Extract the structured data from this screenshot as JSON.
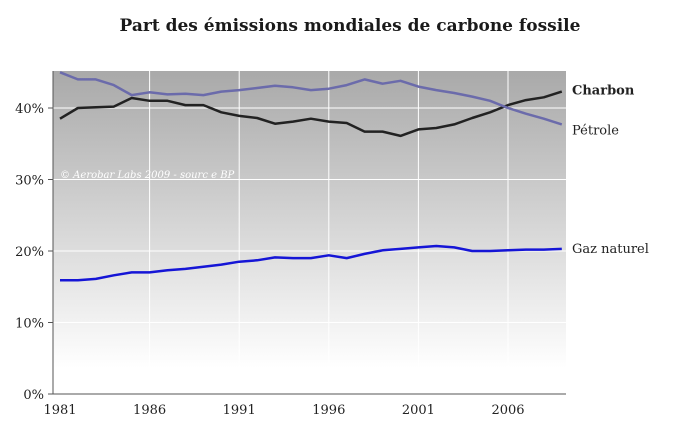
{
  "chart_data": {
    "type": "line",
    "title": "Part des émissions mondiales de carbone fossile",
    "xlabel": "",
    "ylabel": "",
    "xlim": [
      1981,
      2009
    ],
    "ylim": [
      0,
      45
    ],
    "x_ticks": [
      1981,
      1986,
      1991,
      1996,
      2001,
      2006
    ],
    "y_ticks": [
      0,
      10,
      20,
      30,
      40
    ],
    "y_tick_labels": [
      "0%",
      "10%",
      "20%",
      "30%",
      "40%"
    ],
    "grid": true,
    "legend": "labels at line ends (right)",
    "annotation": "© Aerobar Labs 2009 - sourc e BP",
    "x": [
      1981,
      1982,
      1983,
      1984,
      1985,
      1986,
      1987,
      1988,
      1989,
      1990,
      1991,
      1992,
      1993,
      1994,
      1995,
      1996,
      1997,
      1998,
      1999,
      2000,
      2001,
      2002,
      2003,
      2004,
      2005,
      2006,
      2007,
      2008,
      2009
    ],
    "series": [
      {
        "name": "Charbon",
        "color": "#222222",
        "label_bold": true,
        "values": [
          38.5,
          40.0,
          40.1,
          40.2,
          41.4,
          41.0,
          41.0,
          40.4,
          40.4,
          39.4,
          38.9,
          38.6,
          37.8,
          38.1,
          38.5,
          38.1,
          37.9,
          36.7,
          36.7,
          36.1,
          37.0,
          37.2,
          37.7,
          38.6,
          39.4,
          40.4,
          41.1,
          41.5,
          42.3
        ]
      },
      {
        "name": "Pétrole",
        "color": "#6b6bab",
        "label_bold": false,
        "values": [
          45.0,
          44.0,
          44.0,
          43.2,
          41.8,
          42.2,
          41.9,
          42.0,
          41.8,
          42.3,
          42.5,
          42.8,
          43.1,
          42.9,
          42.5,
          42.7,
          43.2,
          44.0,
          43.4,
          43.8,
          43.0,
          42.5,
          42.1,
          41.6,
          41.0,
          40.0,
          39.2,
          38.5,
          37.7
        ]
      },
      {
        "name": "Gaz naturel",
        "color": "#1515d6",
        "label_bold": false,
        "values": [
          15.9,
          15.9,
          16.1,
          16.6,
          17.0,
          17.0,
          17.3,
          17.5,
          17.8,
          18.1,
          18.5,
          18.7,
          19.1,
          19.0,
          19.0,
          19.4,
          19.0,
          19.6,
          20.1,
          20.3,
          20.5,
          20.7,
          20.5,
          20.0,
          20.0,
          20.1,
          20.2,
          20.2,
          20.3
        ]
      }
    ]
  }
}
